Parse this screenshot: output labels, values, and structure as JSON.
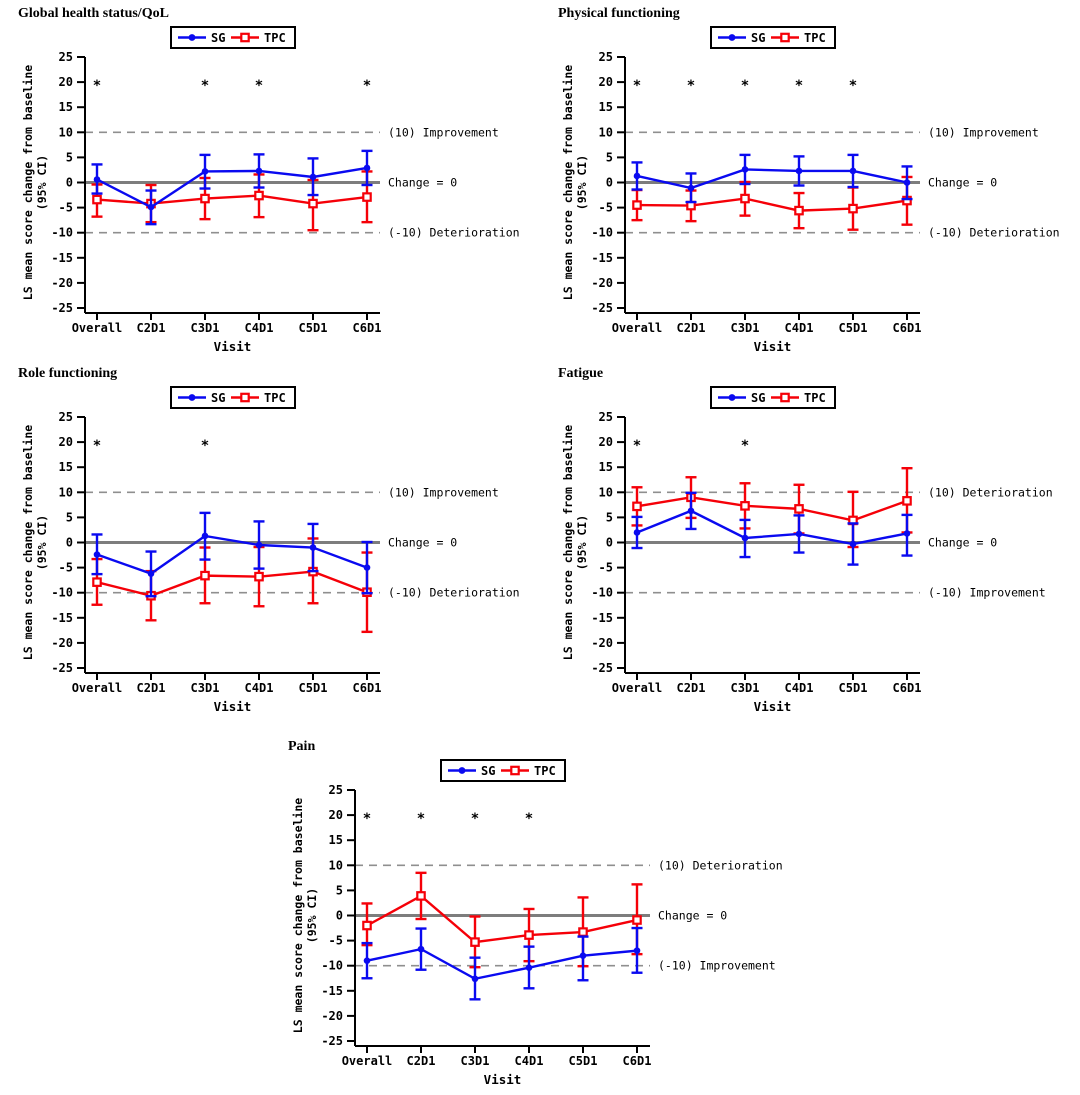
{
  "figure": {
    "background": "#ffffff"
  },
  "shared": {
    "legend": {
      "border_color": "#000000",
      "entries": [
        {
          "label": "SG",
          "color": "#0a0af0",
          "marker": "filled-circle"
        },
        {
          "label": "TPC",
          "color": "#f50008",
          "marker": "open-square"
        }
      ]
    },
    "colors": {
      "sg": "#0a0af0",
      "tpc": "#f50008",
      "zero_line": "#7d7d7d",
      "dashed_line": "#8f8f8f",
      "text": "#000000"
    }
  },
  "chart_data": [
    {
      "type": "line",
      "title": "Global health status/QoL",
      "xlabel": "Visit",
      "ylabel": [
        "LS mean score change from baseline",
        "(95% CI)"
      ],
      "ylim": [
        -25,
        25
      ],
      "yticks": [
        25,
        20,
        15,
        10,
        5,
        0,
        -5,
        -10,
        -15,
        -20,
        -25
      ],
      "categories": [
        "Overall",
        "C2D1",
        "C3D1",
        "C4D1",
        "C5D1",
        "C6D1"
      ],
      "reference_lines": [
        {
          "value": 10,
          "label": "(10) Improvement",
          "style": "dashed"
        },
        {
          "value": 0,
          "label": "Change = 0",
          "style": "solid"
        },
        {
          "value": -10,
          "label": "(-10) Deterioration",
          "style": "dashed"
        }
      ],
      "significance": {
        "symbol": "*",
        "y_value": 20,
        "visits": [
          "Overall",
          "C3D1",
          "C4D1",
          "C6D1"
        ]
      },
      "series": [
        {
          "name": "SG",
          "color": "#0a0af0",
          "marker": "filled-circle",
          "mean": [
            0.6,
            -4.9,
            2.2,
            2.3,
            1.1,
            2.9
          ],
          "ci_low": [
            -2.2,
            -8.3,
            -1.2,
            -1.0,
            -2.5,
            -0.5
          ],
          "ci_high": [
            3.6,
            -1.6,
            5.5,
            5.6,
            4.8,
            6.3
          ]
        },
        {
          "name": "TPC",
          "color": "#f50008",
          "marker": "open-square",
          "mean": [
            -3.4,
            -4.2,
            -3.2,
            -2.6,
            -4.2,
            -2.9
          ],
          "ci_low": [
            -6.8,
            -7.9,
            -7.3,
            -6.9,
            -9.5,
            -7.9
          ],
          "ci_high": [
            -0.4,
            -0.5,
            0.9,
            1.6,
            0.5,
            2.2
          ]
        }
      ]
    },
    {
      "type": "line",
      "title": "Physical functioning",
      "xlabel": "Visit",
      "ylabel": [
        "LS mean score change from baseline",
        "(95% CI)"
      ],
      "ylim": [
        -25,
        25
      ],
      "yticks": [
        25,
        20,
        15,
        10,
        5,
        0,
        -5,
        -10,
        -15,
        -20,
        -25
      ],
      "categories": [
        "Overall",
        "C2D1",
        "C3D1",
        "C4D1",
        "C5D1",
        "C6D1"
      ],
      "reference_lines": [
        {
          "value": 10,
          "label": "(10) Improvement",
          "style": "dashed"
        },
        {
          "value": 0,
          "label": "Change = 0",
          "style": "solid"
        },
        {
          "value": -10,
          "label": "(-10) Deterioration",
          "style": "dashed"
        }
      ],
      "significance": {
        "symbol": "*",
        "y_value": 20,
        "visits": [
          "Overall",
          "C2D1",
          "C3D1",
          "C4D1",
          "C5D1"
        ]
      },
      "series": [
        {
          "name": "SG",
          "color": "#0a0af0",
          "marker": "filled-circle",
          "mean": [
            1.3,
            -1.1,
            2.6,
            2.3,
            2.3,
            0.0
          ],
          "ci_low": [
            -1.4,
            -3.9,
            -0.3,
            -0.6,
            -0.9,
            -3.3
          ],
          "ci_high": [
            4.0,
            1.8,
            5.5,
            5.2,
            5.5,
            3.2
          ]
        },
        {
          "name": "TPC",
          "color": "#f50008",
          "marker": "open-square",
          "mean": [
            -4.5,
            -4.6,
            -3.2,
            -5.6,
            -5.2,
            -3.6
          ],
          "ci_low": [
            -7.5,
            -7.7,
            -6.6,
            -9.1,
            -9.4,
            -8.4
          ],
          "ci_high": [
            -1.5,
            -1.6,
            0.1,
            -2.1,
            -1.0,
            1.1
          ]
        }
      ]
    },
    {
      "type": "line",
      "title": "Role functioning",
      "xlabel": "Visit",
      "ylabel": [
        "LS mean score change from baseline",
        "(95% CI)"
      ],
      "ylim": [
        -25,
        25
      ],
      "yticks": [
        25,
        20,
        15,
        10,
        5,
        0,
        -5,
        -10,
        -15,
        -20,
        -25
      ],
      "categories": [
        "Overall",
        "C2D1",
        "C3D1",
        "C4D1",
        "C5D1",
        "C6D1"
      ],
      "reference_lines": [
        {
          "value": 10,
          "label": "(10) Improvement",
          "style": "dashed"
        },
        {
          "value": 0,
          "label": "Change = 0",
          "style": "solid"
        },
        {
          "value": -10,
          "label": "(-10) Deterioration",
          "style": "dashed"
        }
      ],
      "significance": {
        "symbol": "*",
        "y_value": 20,
        "visits": [
          "Overall",
          "C3D1"
        ]
      },
      "series": [
        {
          "name": "SG",
          "color": "#0a0af0",
          "marker": "filled-circle",
          "mean": [
            -2.4,
            -6.2,
            1.3,
            -0.5,
            -1.0,
            -5.0
          ],
          "ci_low": [
            -6.3,
            -10.7,
            -3.4,
            -5.2,
            -5.7,
            -10.1
          ],
          "ci_high": [
            1.6,
            -1.8,
            5.9,
            4.2,
            3.7,
            0.1
          ]
        },
        {
          "name": "TPC",
          "color": "#f50008",
          "marker": "open-square",
          "mean": [
            -7.9,
            -10.6,
            -6.6,
            -6.8,
            -5.8,
            -9.9
          ],
          "ci_low": [
            -12.4,
            -15.5,
            -12.1,
            -12.7,
            -12.1,
            -17.8
          ],
          "ci_high": [
            -3.3,
            -5.7,
            -1.0,
            -0.9,
            0.8,
            -2.0
          ]
        }
      ]
    },
    {
      "type": "line",
      "title": "Fatigue",
      "xlabel": "Visit",
      "ylabel": [
        "LS mean score change from baseline",
        "(95% CI)"
      ],
      "ylim": [
        -25,
        25
      ],
      "yticks": [
        25,
        20,
        15,
        10,
        5,
        0,
        -5,
        -10,
        -15,
        -20,
        -25
      ],
      "categories": [
        "Overall",
        "C2D1",
        "C3D1",
        "C4D1",
        "C5D1",
        "C6D1"
      ],
      "reference_lines": [
        {
          "value": 10,
          "label": "(10) Deterioration",
          "style": "dashed"
        },
        {
          "value": 0,
          "label": "Change = 0",
          "style": "solid"
        },
        {
          "value": -10,
          "label": "(-10) Improvement",
          "style": "dashed"
        }
      ],
      "significance": {
        "symbol": "*",
        "y_value": 20,
        "visits": [
          "Overall",
          "C3D1"
        ]
      },
      "series": [
        {
          "name": "SG",
          "color": "#0a0af0",
          "marker": "filled-circle",
          "mean": [
            2.0,
            6.3,
            0.9,
            1.7,
            -0.3,
            1.8
          ],
          "ci_low": [
            -1.1,
            2.7,
            -2.9,
            -2.0,
            -4.4,
            -2.6
          ],
          "ci_high": [
            5.1,
            9.9,
            4.5,
            5.4,
            3.8,
            5.5
          ]
        },
        {
          "name": "TPC",
          "color": "#f50008",
          "marker": "open-square",
          "mean": [
            7.2,
            9.0,
            7.3,
            6.7,
            4.4,
            8.3
          ],
          "ci_low": [
            3.4,
            4.9,
            2.8,
            1.8,
            -0.9,
            2.0
          ],
          "ci_high": [
            11.0,
            13.0,
            11.8,
            11.5,
            10.1,
            14.8
          ]
        }
      ]
    },
    {
      "type": "line",
      "title": "Pain",
      "xlabel": "Visit",
      "ylabel": [
        "LS mean score change from baseline",
        "(95% CI)"
      ],
      "ylim": [
        -25,
        25
      ],
      "yticks": [
        25,
        20,
        15,
        10,
        5,
        0,
        -5,
        -10,
        -15,
        -20,
        -25
      ],
      "categories": [
        "Overall",
        "C2D1",
        "C3D1",
        "C4D1",
        "C5D1",
        "C6D1"
      ],
      "reference_lines": [
        {
          "value": 10,
          "label": "(10) Deterioration",
          "style": "dashed"
        },
        {
          "value": 0,
          "label": "Change = 0",
          "style": "solid"
        },
        {
          "value": -10,
          "label": "(-10) Improvement",
          "style": "dashed"
        }
      ],
      "significance": {
        "symbol": "*",
        "y_value": 20,
        "visits": [
          "Overall",
          "C2D1",
          "C3D1",
          "C4D1"
        ]
      },
      "series": [
        {
          "name": "SG",
          "color": "#0a0af0",
          "marker": "filled-circle",
          "mean": [
            -9.0,
            -6.7,
            -12.6,
            -10.4,
            -8.0,
            -7.0
          ],
          "ci_low": [
            -12.5,
            -10.8,
            -16.7,
            -14.5,
            -12.9,
            -11.4
          ],
          "ci_high": [
            -5.5,
            -2.6,
            -8.4,
            -6.2,
            -4.2,
            -2.5
          ]
        },
        {
          "name": "TPC",
          "color": "#f50008",
          "marker": "open-square",
          "mean": [
            -2.0,
            3.9,
            -5.3,
            -3.9,
            -3.3,
            -0.9
          ],
          "ci_low": [
            -5.9,
            -0.7,
            -10.3,
            -9.1,
            -10.1,
            -7.7
          ],
          "ci_high": [
            2.4,
            8.5,
            -0.2,
            1.3,
            3.6,
            6.2
          ]
        }
      ]
    }
  ]
}
